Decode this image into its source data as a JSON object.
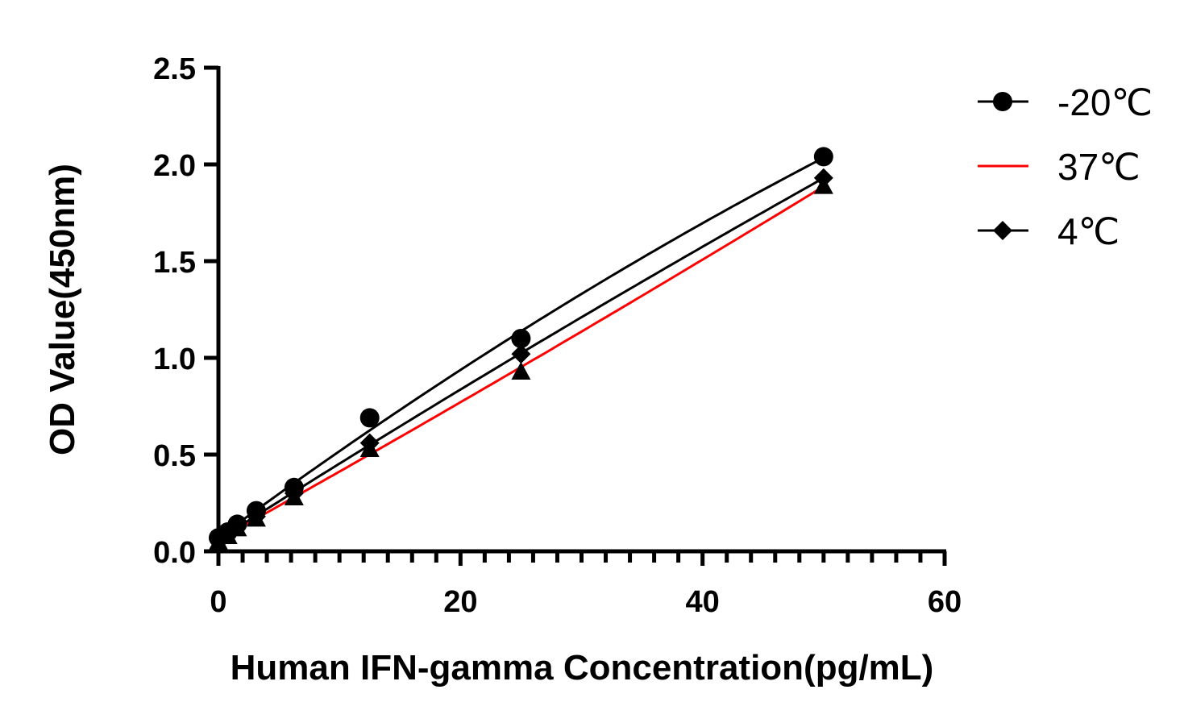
{
  "chart_data": {
    "type": "scatter",
    "title": "",
    "xlabel": "Human IFN-gamma Concentration(pg/mL)",
    "ylabel": "OD Value(450nm)",
    "xlim": [
      0,
      60
    ],
    "ylim": [
      0,
      2.5
    ],
    "xticks": [
      "0",
      "20",
      "40",
      "60"
    ],
    "yticks": [
      "0.0",
      "0.5",
      "1.0",
      "1.5",
      "2.0",
      "2.5"
    ],
    "grid": false,
    "legend_position": "top-right",
    "x": [
      0,
      0.78,
      1.56,
      3.125,
      6.25,
      12.5,
      25,
      50
    ],
    "series": [
      {
        "name": "-20℃",
        "marker": "circle",
        "line_color": "#000000",
        "values": [
          0.07,
          0.1,
          0.14,
          0.21,
          0.33,
          0.69,
          1.1,
          2.04
        ]
      },
      {
        "name": "37℃",
        "marker": "triangle",
        "line_color": "#ff0000",
        "values": [
          0.05,
          0.08,
          0.12,
          0.17,
          0.28,
          0.53,
          0.93,
          1.89
        ]
      },
      {
        "name": "4℃",
        "marker": "diamond",
        "line_color": "#000000",
        "values": [
          0.06,
          0.09,
          0.13,
          0.18,
          0.3,
          0.56,
          1.02,
          1.93
        ]
      }
    ]
  }
}
